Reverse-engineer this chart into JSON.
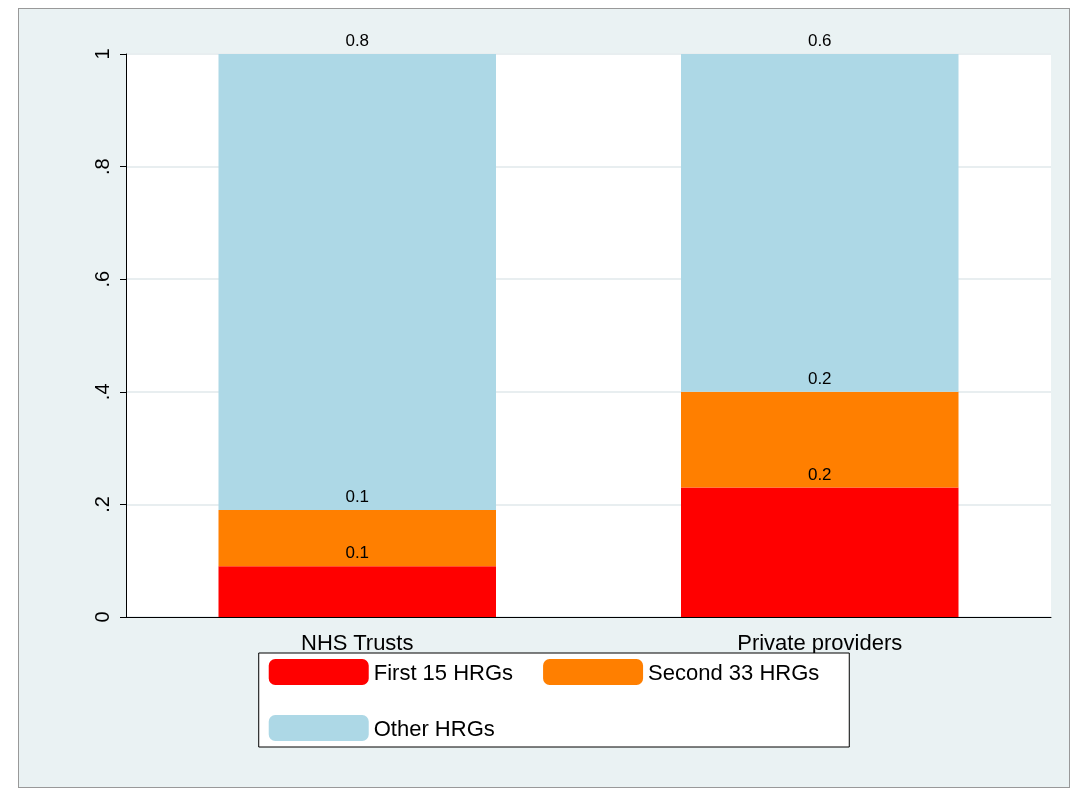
{
  "chart_data": {
    "type": "bar",
    "stacked": true,
    "categories": [
      "NHS Trusts",
      "Private providers"
    ],
    "series": [
      {
        "name": "First 15 HRGs",
        "color": "#ff0000",
        "values": [
          0.09,
          0.23
        ],
        "value_labels": [
          "0.1",
          "0.2"
        ]
      },
      {
        "name": "Second 33 HRGs",
        "color": "#ff7f00",
        "values": [
          0.1,
          0.17
        ],
        "value_labels": [
          "0.1",
          "0.2"
        ]
      },
      {
        "name": "Other HRGs",
        "color": "#add8e6",
        "values": [
          0.81,
          0.6
        ],
        "value_labels": [
          "0.8",
          "0.6"
        ]
      }
    ],
    "ylim": [
      0,
      1
    ],
    "yticks": [
      {
        "value": 0,
        "label": "0"
      },
      {
        "value": 0.2,
        "label": ".2"
      },
      {
        "value": 0.4,
        "label": ".4"
      },
      {
        "value": 0.6,
        "label": ".6"
      },
      {
        "value": 0.8,
        "label": ".8"
      },
      {
        "value": 1,
        "label": "1"
      }
    ],
    "grid": "y",
    "legend": "bottom"
  }
}
